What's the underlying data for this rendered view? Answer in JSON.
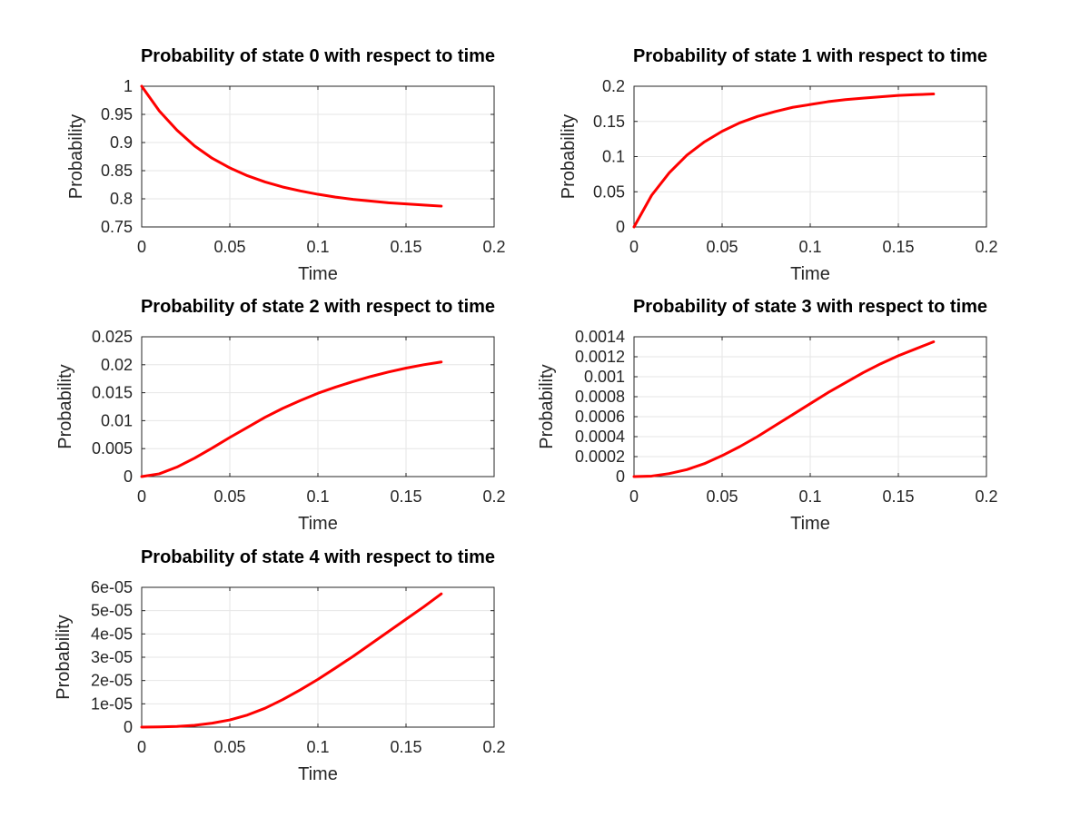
{
  "chart_data": [
    {
      "type": "line",
      "title": "Probability of state 0 with respect to time",
      "xlabel": "Time",
      "ylabel": "Probability",
      "xlim": [
        0,
        0.2
      ],
      "ylim": [
        0.75,
        1
      ],
      "xticks": [
        "0",
        "0.05",
        "0.1",
        "0.15",
        "0.2"
      ],
      "yticks": [
        "0.75",
        "0.8",
        "0.85",
        "0.9",
        "0.95",
        "1"
      ],
      "grid": true,
      "series": [
        {
          "color": "#ff0000",
          "x": [
            0,
            0.01,
            0.02,
            0.03,
            0.04,
            0.05,
            0.06,
            0.07,
            0.08,
            0.09,
            0.1,
            0.11,
            0.12,
            0.13,
            0.14,
            0.15,
            0.16,
            0.17
          ],
          "y": [
            1.0,
            0.956,
            0.922,
            0.894,
            0.872,
            0.855,
            0.841,
            0.83,
            0.821,
            0.814,
            0.808,
            0.803,
            0.799,
            0.796,
            0.793,
            0.791,
            0.789,
            0.787
          ]
        }
      ]
    },
    {
      "type": "line",
      "title": "Probability of state 1 with respect to time",
      "xlabel": "Time",
      "ylabel": "Probability",
      "xlim": [
        0,
        0.2
      ],
      "ylim": [
        0,
        0.2
      ],
      "xticks": [
        "0",
        "0.05",
        "0.1",
        "0.15",
        "0.2"
      ],
      "yticks": [
        "0",
        "0.05",
        "0.1",
        "0.15",
        "0.2"
      ],
      "grid": true,
      "series": [
        {
          "color": "#ff0000",
          "x": [
            0,
            0.01,
            0.02,
            0.03,
            0.04,
            0.05,
            0.06,
            0.07,
            0.08,
            0.09,
            0.1,
            0.11,
            0.12,
            0.13,
            0.14,
            0.15,
            0.16,
            0.17
          ],
          "y": [
            0,
            0.045,
            0.077,
            0.102,
            0.121,
            0.136,
            0.148,
            0.157,
            0.164,
            0.17,
            0.174,
            0.178,
            0.181,
            0.183,
            0.185,
            0.187,
            0.188,
            0.189
          ]
        }
      ]
    },
    {
      "type": "line",
      "title": "Probability of state 2 with respect to time",
      "xlabel": "Time",
      "ylabel": "Probability",
      "xlim": [
        0,
        0.2
      ],
      "ylim": [
        0,
        0.025
      ],
      "xticks": [
        "0",
        "0.05",
        "0.1",
        "0.15",
        "0.2"
      ],
      "yticks": [
        "0",
        "0.005",
        "0.01",
        "0.015",
        "0.02",
        "0.025"
      ],
      "grid": true,
      "series": [
        {
          "color": "#ff0000",
          "x": [
            0,
            0.01,
            0.02,
            0.03,
            0.04,
            0.05,
            0.06,
            0.07,
            0.08,
            0.09,
            0.1,
            0.11,
            0.12,
            0.13,
            0.14,
            0.15,
            0.16,
            0.17
          ],
          "y": [
            0,
            0.0005,
            0.0017,
            0.0033,
            0.0051,
            0.007,
            0.0088,
            0.0106,
            0.0122,
            0.0136,
            0.0149,
            0.016,
            0.017,
            0.0179,
            0.0187,
            0.0194,
            0.02,
            0.0205
          ]
        }
      ]
    },
    {
      "type": "line",
      "title": "Probability of state 3 with respect to time",
      "xlabel": "Time",
      "ylabel": "Probability",
      "xlim": [
        0,
        0.2
      ],
      "ylim": [
        0,
        0.0014
      ],
      "xticks": [
        "0",
        "0.05",
        "0.1",
        "0.15",
        "0.2"
      ],
      "yticks": [
        "0",
        "0.0002",
        "0.0004",
        "0.0006",
        "0.0008",
        "0.001",
        "0.0012",
        "0.0014"
      ],
      "grid": true,
      "series": [
        {
          "color": "#ff0000",
          "x": [
            0,
            0.01,
            0.02,
            0.03,
            0.04,
            0.05,
            0.06,
            0.07,
            0.08,
            0.09,
            0.1,
            0.11,
            0.12,
            0.13,
            0.14,
            0.15,
            0.16,
            0.17
          ],
          "y": [
            0,
            5e-06,
            3e-05,
            7e-05,
            0.00013,
            0.00021,
            0.0003,
            0.0004,
            0.00051,
            0.00062,
            0.00073,
            0.00084,
            0.00094,
            0.00104,
            0.00113,
            0.00121,
            0.00128,
            0.00135
          ]
        }
      ]
    },
    {
      "type": "line",
      "title": "Probability of state 4 with respect to time",
      "xlabel": "Time",
      "ylabel": "Probability",
      "xlim": [
        0,
        0.2
      ],
      "ylim": [
        0,
        6e-05
      ],
      "xticks": [
        "0",
        "0.05",
        "0.1",
        "0.15",
        "0.2"
      ],
      "yticks": [
        "0",
        "1e-05",
        "2e-05",
        "3e-05",
        "4e-05",
        "5e-05",
        "6e-05"
      ],
      "grid": true,
      "series": [
        {
          "color": "#ff0000",
          "x": [
            0,
            0.01,
            0.02,
            0.03,
            0.04,
            0.05,
            0.06,
            0.07,
            0.08,
            0.09,
            0.1,
            0.11,
            0.12,
            0.13,
            0.14,
            0.15,
            0.16,
            0.17
          ],
          "y": [
            0,
            1e-07,
            3e-07,
            8e-07,
            1.7e-06,
            3.1e-06,
            5.2e-06,
            8.1e-06,
            1.18e-05,
            1.6e-05,
            2.05e-05,
            2.54e-05,
            3.04e-05,
            3.57e-05,
            4.1e-05,
            4.63e-05,
            5.16e-05,
            5.72e-05
          ]
        }
      ]
    }
  ]
}
